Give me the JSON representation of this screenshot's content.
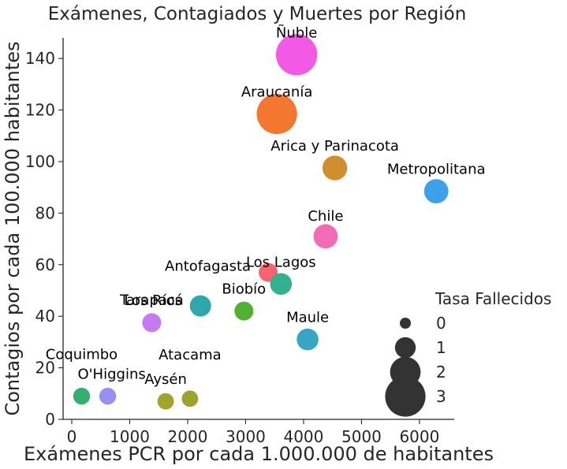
{
  "chart_data": {
    "type": "scatter",
    "title": "Exámenes, Contagiados y Muertes por Región",
    "xlabel": "Exámenes PCR por cada 1.000.000 de habitantes",
    "ylabel": "Contagios por cada 100.000 habitantes",
    "xlim": [
      -150,
      6600
    ],
    "ylim": [
      0,
      148
    ],
    "xticks": [
      0,
      1000,
      2000,
      3000,
      4000,
      5000,
      6000
    ],
    "yticks": [
      0,
      20,
      40,
      60,
      80,
      100,
      120,
      140
    ],
    "grid": false,
    "size_legend": {
      "title": "Tasa Fallecidos",
      "placement": "right",
      "entries": [
        0,
        1,
        2,
        3
      ]
    },
    "points": [
      {
        "label": "Ñuble",
        "x": 3880,
        "y": 141.5,
        "size": 3.1,
        "color": "#f25ae6"
      },
      {
        "label": "Araucanía",
        "x": 3540,
        "y": 118.5,
        "size": 3.0,
        "color": "#f5762e"
      },
      {
        "label": "Arica y Parinacota",
        "x": 4540,
        "y": 97.5,
        "size": 1.4,
        "color": "#cf8f2f"
      },
      {
        "label": "Metropolitana",
        "x": 6290,
        "y": 88.5,
        "size": 1.35,
        "color": "#3ca1ea"
      },
      {
        "label": "Chile",
        "x": 4380,
        "y": 71.0,
        "size": 1.35,
        "color": "#f06db5"
      },
      {
        "label": "Antofagasta",
        "x": 3390,
        "y": 57.0,
        "size": 0.8,
        "color": "#f5646f"
      },
      {
        "label": "Los Lagos",
        "x": 3610,
        "y": 52.5,
        "size": 1.1,
        "color": "#33b08e"
      },
      {
        "label": "Los Ríos",
        "x": 2220,
        "y": 44.0,
        "size": 1.05,
        "color": "#2fa8ab"
      },
      {
        "label": "Biobío",
        "x": 2970,
        "y": 42.0,
        "size": 0.8,
        "color": "#50b231"
      },
      {
        "label": "Tarapacá",
        "x": 1380,
        "y": 37.5,
        "size": 0.8,
        "color": "#c57af2"
      },
      {
        "label": "Maule",
        "x": 4070,
        "y": 31.0,
        "size": 1.1,
        "color": "#36a6c5"
      },
      {
        "label": "Coquimbo",
        "x": 170,
        "y": 9.0,
        "size": 0.6,
        "color": "#33b070"
      },
      {
        "label": "O'Higgins",
        "x": 620,
        "y": 9.0,
        "size": 0.6,
        "color": "#9890f1"
      },
      {
        "label": "Aysén",
        "x": 1620,
        "y": 7.0,
        "size": 0.55,
        "color": "#a0a32c"
      },
      {
        "label": "Atacama",
        "x": 2040,
        "y": 8.0,
        "size": 0.55,
        "color": "#9ea32e"
      }
    ]
  }
}
